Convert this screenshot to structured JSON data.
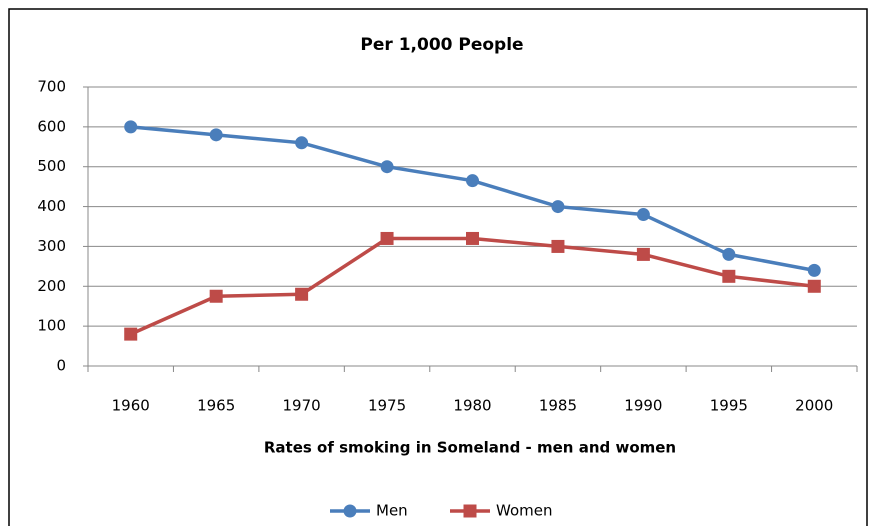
{
  "chart_data": {
    "type": "line",
    "title": "Per 1,000 People",
    "x_label": "Rates of smoking in Someland - men and women",
    "categories": [
      "1960",
      "1965",
      "1970",
      "1975",
      "1980",
      "1985",
      "1990",
      "1995",
      "2000"
    ],
    "series": [
      {
        "name": "Men",
        "color": "#4a7ebb",
        "marker": "circle",
        "values": [
          600,
          580,
          560,
          500,
          465,
          400,
          380,
          280,
          240
        ]
      },
      {
        "name": "Women",
        "color": "#be4b48",
        "marker": "square",
        "values": [
          80,
          175,
          180,
          320,
          320,
          300,
          280,
          225,
          200
        ]
      }
    ],
    "ylim": [
      0,
      700
    ],
    "yticks": [
      0,
      100,
      200,
      300,
      400,
      500,
      600,
      700
    ],
    "grid": true,
    "legend": "bottom"
  }
}
